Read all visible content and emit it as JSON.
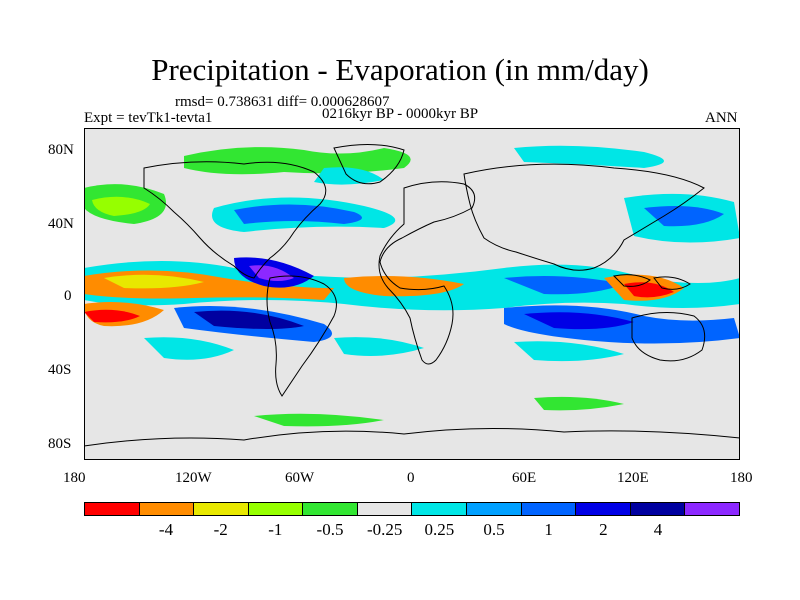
{
  "title": "Precipitation - Evaporation (in mm/day)",
  "stats": "rmsd= 0.738631 diff= 0.000628607",
  "expt": "Expt = tevTk1-tevta1",
  "period": "0216kyr BP - 0000kyr BP",
  "season": "ANN",
  "x_ticks": [
    "180",
    "120W",
    "60W",
    "0",
    "60E",
    "120E",
    "180"
  ],
  "y_ticks": [
    "80N",
    "40N",
    "0",
    "40S",
    "80S"
  ],
  "colorbar": {
    "colors": [
      "#ff0000",
      "#ff8c00",
      "#e8e800",
      "#96ff00",
      "#32e632",
      "#e6e6e6",
      "#00e6e6",
      "#00a0ff",
      "#0064ff",
      "#0000e6",
      "#0000a0",
      "#8c28ff"
    ],
    "labels": [
      "-4",
      "-2",
      "-1",
      "-0.5",
      "-0.25",
      "0.25",
      "0.5",
      "1",
      "2",
      "4"
    ]
  }
}
